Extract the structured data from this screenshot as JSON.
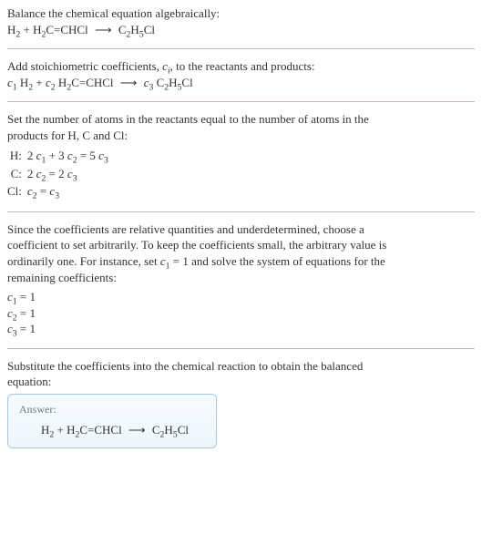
{
  "s1": {
    "line1": "Balance the chemical equation algebraically:",
    "eq_pre": "H",
    "eq_h2sub": "2",
    "eq_plus": " + H",
    "eq_h2sub2": "2",
    "eq_mid": "C=CHCl",
    "arrow": "⟶",
    "eq_prod_pre": "C",
    "eq_prod_sub1": "2",
    "eq_prod_mid": "H",
    "eq_prod_sub2": "5",
    "eq_prod_end": "Cl"
  },
  "s2": {
    "line1a": "Add stoichiometric coefficients, ",
    "ci": "c",
    "ci_sub": "i",
    "line1b": ", to the reactants and products:",
    "c1": "c",
    "c1s": "1",
    "sp1": " H",
    "h2s": "2",
    "plus": " + ",
    "c2": "c",
    "c2s": "2",
    "sp2": " H",
    "h2s2": "2",
    "mid": "C=CHCl",
    "arrow": "⟶",
    "c3": "c",
    "c3s": "3",
    "sp3": " C",
    "p1s": "2",
    "pm": "H",
    "p2s": "5",
    "pe": "Cl"
  },
  "s3": {
    "intro1": "Set the number of atoms in the reactants equal to the number of atoms in the",
    "intro2": "products for H, C and Cl:",
    "rows": [
      {
        "el": "H:",
        "lhs_a": "2 ",
        "c1": "c",
        "c1s": "1",
        "plus": " + 3 ",
        "c2": "c",
        "c2s": "2",
        "eq": " = 5 ",
        "c3": "c",
        "c3s": "3"
      },
      {
        "el": "C:",
        "lhs_a": "2 ",
        "c1": "c",
        "c1s": "2",
        "plus": "",
        "c2": "",
        "c2s": "",
        "eq": " = 2 ",
        "c3": "c",
        "c3s": "3"
      },
      {
        "el": "Cl:",
        "lhs_a": "",
        "c1": "c",
        "c1s": "2",
        "plus": "",
        "c2": "",
        "c2s": "",
        "eq": " = ",
        "c3": "c",
        "c3s": "3"
      }
    ]
  },
  "s4": {
    "p1": "Since the coefficients are relative quantities and underdetermined, choose a",
    "p2": "coefficient to set arbitrarily. To keep the coefficients small, the arbitrary value is",
    "p3a": "ordinarily one. For instance, set ",
    "c1": "c",
    "c1s": "1",
    "p3b": " = 1 and solve the system of equations for the",
    "p4": "remaining coefficients:",
    "coefs": [
      {
        "c": "c",
        "s": "1",
        "v": " = 1"
      },
      {
        "c": "c",
        "s": "2",
        "v": " = 1"
      },
      {
        "c": "c",
        "s": "3",
        "v": " = 1"
      }
    ]
  },
  "s5": {
    "p1": "Substitute the coefficients into the chemical reaction to obtain the balanced",
    "p2": "equation:",
    "answer_label": "Answer:"
  }
}
